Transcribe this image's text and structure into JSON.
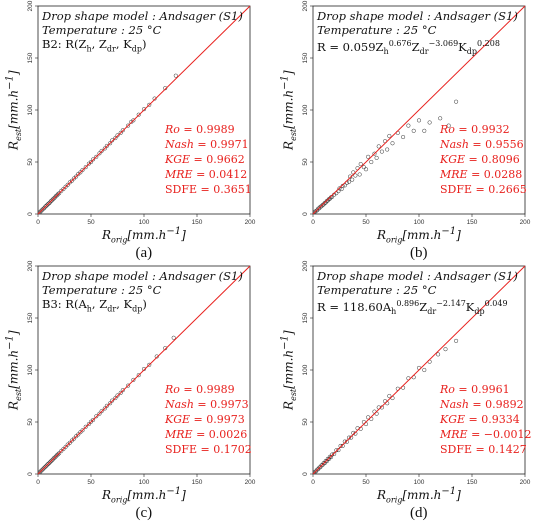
{
  "chart_data": [
    {
      "type": "scatter",
      "panel_label": "(a)",
      "model_text": "Drop shape model : Andsager (S1)",
      "temp_text": "Temperature : 25 °C",
      "formula": {
        "prefix": "B2",
        "rest": ": R(Z",
        "parts": [
          "h",
          ", Z",
          "dr",
          ", K",
          "dp",
          ")"
        ]
      },
      "xlabel": {
        "main": "R",
        "sub": "orig",
        "unit": "[mm.h",
        "sup": "−1",
        "end": "]"
      },
      "ylabel": {
        "main": "R",
        "sub": "est",
        "unit": "[mm.h",
        "sup": "−1",
        "end": "]"
      },
      "xlim": [
        0,
        200
      ],
      "ylim": [
        0,
        200
      ],
      "xticks": [
        "0",
        "50",
        "100",
        "150",
        "200"
      ],
      "yticks": [
        "0",
        "50",
        "100",
        "150",
        "200"
      ],
      "reference_line": "1:1",
      "stats": [
        {
          "k": "Ro",
          "v": "= 0.9989"
        },
        {
          "k": "Nash",
          "v": "= 0.9971"
        },
        {
          "k": "KGE",
          "v": "= 0.9662"
        },
        {
          "k": "MRE",
          "v": "= 0.0412"
        },
        {
          "k": "SDFE",
          "v": "= 0.3651"
        }
      ],
      "points": [
        [
          1,
          1
        ],
        [
          2,
          2
        ],
        [
          3,
          3
        ],
        [
          4,
          4
        ],
        [
          5,
          5
        ],
        [
          6,
          5.8
        ],
        [
          7,
          7.2
        ],
        [
          8,
          8
        ],
        [
          9,
          9.1
        ],
        [
          10,
          10
        ],
        [
          11,
          10.8
        ],
        [
          12,
          12.2
        ],
        [
          13,
          13
        ],
        [
          14,
          14.1
        ],
        [
          15,
          15
        ],
        [
          16,
          16
        ],
        [
          17,
          17.3
        ],
        [
          18,
          18
        ],
        [
          19,
          19.2
        ],
        [
          20,
          20
        ],
        [
          22,
          22.3
        ],
        [
          24,
          24
        ],
        [
          26,
          26.2
        ],
        [
          28,
          28
        ],
        [
          30,
          30.4
        ],
        [
          32,
          32
        ],
        [
          34,
          34.2
        ],
        [
          36,
          36
        ],
        [
          38,
          38.5
        ],
        [
          40,
          40
        ],
        [
          42,
          42.3
        ],
        [
          45,
          45
        ],
        [
          48,
          48.4
        ],
        [
          50,
          50
        ],
        [
          52,
          52.5
        ],
        [
          55,
          55
        ],
        [
          58,
          58.3
        ],
        [
          60,
          60.6
        ],
        [
          63,
          63
        ],
        [
          65,
          65.5
        ],
        [
          68,
          68
        ],
        [
          70,
          70.8
        ],
        [
          73,
          73
        ],
        [
          75,
          75.6
        ],
        [
          78,
          78
        ],
        [
          80,
          80.5
        ],
        [
          85,
          85
        ],
        [
          88,
          88.6
        ],
        [
          90,
          90
        ],
        [
          95,
          95.5
        ],
        [
          100,
          100.8
        ],
        [
          105,
          105
        ],
        [
          110,
          111
        ],
        [
          120,
          121
        ],
        [
          130,
          133
        ]
      ]
    },
    {
      "type": "scatter",
      "panel_label": "(b)",
      "model_text": "Drop shape model : Andsager (S1)",
      "temp_text": "Temperature : 25 °C",
      "formula_b": {
        "pre": "R = 0.059Z",
        "s1": "h",
        "p1": "0.676",
        "m1": "Z",
        "s2": "dr",
        "p2": "−3.069",
        "m2": "K",
        "s3": "dp",
        "p3": "0.208"
      },
      "xlabel": {
        "main": "R",
        "sub": "orig",
        "unit": "[mm.h",
        "sup": "−1",
        "end": "]"
      },
      "ylabel": {
        "main": "R",
        "sub": "est",
        "unit": "[mm.h",
        "sup": "−1",
        "end": "]"
      },
      "xlim": [
        0,
        200
      ],
      "ylim": [
        0,
        200
      ],
      "xticks": [
        "0",
        "50",
        "100",
        "150",
        "200"
      ],
      "yticks": [
        "0",
        "50",
        "100",
        "150",
        "200"
      ],
      "reference_line": "1:1",
      "stats": [
        {
          "k": "Ro",
          "v": "= 0.9932"
        },
        {
          "k": "Nash",
          "v": "= 0.9556"
        },
        {
          "k": "KGE",
          "v": "= 0.8096"
        },
        {
          "k": "MRE",
          "v": "= 0.0288"
        },
        {
          "k": "SDFE",
          "v": "= 0.2665"
        }
      ],
      "points": [
        [
          1,
          1
        ],
        [
          2,
          2.2
        ],
        [
          3,
          3
        ],
        [
          4,
          3.6
        ],
        [
          5,
          5.2
        ],
        [
          6,
          5.5
        ],
        [
          7,
          7
        ],
        [
          8,
          7.4
        ],
        [
          9,
          8.6
        ],
        [
          10,
          9.2
        ],
        [
          11,
          10.5
        ],
        [
          12,
          11
        ],
        [
          13,
          12.4
        ],
        [
          14,
          13
        ],
        [
          15,
          14.2
        ],
        [
          16,
          14.8
        ],
        [
          17,
          16
        ],
        [
          18,
          16.5
        ],
        [
          20,
          18.6
        ],
        [
          22,
          20
        ],
        [
          24,
          22
        ],
        [
          25,
          24.6
        ],
        [
          27,
          24
        ],
        [
          28,
          27
        ],
        [
          30,
          27.5
        ],
        [
          32,
          30
        ],
        [
          34,
          31
        ],
        [
          35,
          36
        ],
        [
          37,
          33
        ],
        [
          38,
          40
        ],
        [
          40,
          37
        ],
        [
          42,
          44
        ],
        [
          44,
          38
        ],
        [
          45,
          48
        ],
        [
          48,
          45
        ],
        [
          50,
          43
        ],
        [
          52,
          55
        ],
        [
          55,
          50
        ],
        [
          58,
          58
        ],
        [
          60,
          54
        ],
        [
          62,
          65
        ],
        [
          65,
          60
        ],
        [
          68,
          70
        ],
        [
          70,
          62
        ],
        [
          72,
          75
        ],
        [
          75,
          68
        ],
        [
          80,
          78
        ],
        [
          85,
          74
        ],
        [
          90,
          85
        ],
        [
          95,
          80
        ],
        [
          100,
          90
        ],
        [
          105,
          80
        ],
        [
          110,
          88
        ],
        [
          120,
          92
        ],
        [
          128,
          85
        ],
        [
          135,
          108
        ]
      ]
    },
    {
      "type": "scatter",
      "panel_label": "(c)",
      "model_text": "Drop shape model : Andsager (S1)",
      "temp_text": "Temperature : 25 °C",
      "formula": {
        "prefix": "B3",
        "rest": ": R(A",
        "parts": [
          "h",
          ", Z",
          "dr",
          ", K",
          "dp",
          ")"
        ]
      },
      "xlabel": {
        "main": "R",
        "sub": "orig",
        "unit": "[mm.h",
        "sup": "−1",
        "end": "]"
      },
      "ylabel": {
        "main": "R",
        "sub": "est",
        "unit": "[mm.h",
        "sup": "−1",
        "end": "]"
      },
      "xlim": [
        0,
        200
      ],
      "ylim": [
        0,
        200
      ],
      "xticks": [
        "0",
        "50",
        "100",
        "150",
        "200"
      ],
      "yticks": [
        "0",
        "50",
        "100",
        "150",
        "200"
      ],
      "reference_line": "1:1",
      "stats": [
        {
          "k": "Ro",
          "v": "= 0.9989"
        },
        {
          "k": "Nash",
          "v": "= 0.9973"
        },
        {
          "k": "KGE",
          "v": "= 0.9973"
        },
        {
          "k": "MRE",
          "v": "= 0.0026"
        },
        {
          "k": "SDFE",
          "v": "= 0.1702"
        }
      ],
      "points": [
        [
          1,
          1
        ],
        [
          2,
          2
        ],
        [
          3,
          3.1
        ],
        [
          4,
          4
        ],
        [
          5,
          5
        ],
        [
          6,
          6.1
        ],
        [
          7,
          7
        ],
        [
          8,
          8
        ],
        [
          9,
          9.2
        ],
        [
          10,
          10
        ],
        [
          11,
          11
        ],
        [
          12,
          12.1
        ],
        [
          13,
          13
        ],
        [
          14,
          14
        ],
        [
          15,
          15.2
        ],
        [
          16,
          16
        ],
        [
          17,
          17
        ],
        [
          18,
          18.2
        ],
        [
          19,
          19
        ],
        [
          20,
          20
        ],
        [
          22,
          22.2
        ],
        [
          24,
          24
        ],
        [
          26,
          26
        ],
        [
          28,
          28.3
        ],
        [
          30,
          30
        ],
        [
          32,
          32.2
        ],
        [
          34,
          34
        ],
        [
          36,
          36.3
        ],
        [
          38,
          38
        ],
        [
          40,
          40.2
        ],
        [
          42,
          42
        ],
        [
          45,
          45.4
        ],
        [
          48,
          48
        ],
        [
          50,
          50.3
        ],
        [
          52,
          52
        ],
        [
          55,
          55.5
        ],
        [
          58,
          58
        ],
        [
          60,
          60.4
        ],
        [
          63,
          63
        ],
        [
          65,
          65.6
        ],
        [
          68,
          68
        ],
        [
          70,
          70.6
        ],
        [
          73,
          73
        ],
        [
          75,
          75.5
        ],
        [
          78,
          78
        ],
        [
          80,
          80.6
        ],
        [
          85,
          85
        ],
        [
          90,
          90.5
        ],
        [
          95,
          95
        ],
        [
          100,
          101
        ],
        [
          105,
          105
        ],
        [
          112,
          113
        ],
        [
          120,
          121
        ],
        [
          128,
          131
        ]
      ]
    },
    {
      "type": "scatter",
      "panel_label": "(d)",
      "model_text": "Drop shape model : Andsager (S1)",
      "temp_text": "Temperature : 25 °C",
      "formula_b": {
        "pre": "R = 118.60A",
        "s1": "h",
        "p1": "0.896",
        "m1": "Z",
        "s2": "dr",
        "p2": "−2.147",
        "m2": "K",
        "s3": "dp",
        "p3": "0.049"
      },
      "xlabel": {
        "main": "R",
        "sub": "orig",
        "unit": "[mm.h",
        "sup": "−1",
        "end": "]"
      },
      "ylabel": {
        "main": "R",
        "sub": "est",
        "unit": "[mm.h",
        "sup": "−1",
        "end": "]"
      },
      "xlim": [
        0,
        200
      ],
      "ylim": [
        0,
        200
      ],
      "xticks": [
        "0",
        "50",
        "100",
        "150",
        "200"
      ],
      "yticks": [
        "0",
        "50",
        "100",
        "150",
        "200"
      ],
      "reference_line": "1:1",
      "stats": [
        {
          "k": "Ro",
          "v": "= 0.9961"
        },
        {
          "k": "Nash",
          "v": "= 0.9892"
        },
        {
          "k": "KGE",
          "v": "= 0.9334"
        },
        {
          "k": "MRE",
          "v": "= −0.0012"
        },
        {
          "k": "SDFE",
          "v": "= 0.1427"
        }
      ],
      "points": [
        [
          1,
          1
        ],
        [
          2,
          2.1
        ],
        [
          3,
          2.8
        ],
        [
          4,
          4.2
        ],
        [
          5,
          4.8
        ],
        [
          6,
          6.2
        ],
        [
          7,
          6.6
        ],
        [
          8,
          8.3
        ],
        [
          9,
          8.7
        ],
        [
          10,
          10.4
        ],
        [
          11,
          10.4
        ],
        [
          12,
          12.5
        ],
        [
          13,
          12.3
        ],
        [
          14,
          14.6
        ],
        [
          15,
          14.4
        ],
        [
          16,
          16.6
        ],
        [
          17,
          16.2
        ],
        [
          18,
          18.7
        ],
        [
          20,
          19.3
        ],
        [
          22,
          22.8
        ],
        [
          24,
          23
        ],
        [
          26,
          27
        ],
        [
          28,
          27
        ],
        [
          30,
          31.2
        ],
        [
          32,
          31
        ],
        [
          34,
          35
        ],
        [
          36,
          35
        ],
        [
          38,
          39.5
        ],
        [
          40,
          38.8
        ],
        [
          42,
          44
        ],
        [
          45,
          43.5
        ],
        [
          48,
          50
        ],
        [
          50,
          48
        ],
        [
          52,
          54.5
        ],
        [
          55,
          53
        ],
        [
          58,
          60
        ],
        [
          60,
          58
        ],
        [
          62,
          64
        ],
        [
          65,
          64
        ],
        [
          68,
          70
        ],
        [
          70,
          68
        ],
        [
          72,
          75
        ],
        [
          75,
          73
        ],
        [
          80,
          82
        ],
        [
          85,
          83
        ],
        [
          90,
          92
        ],
        [
          95,
          93
        ],
        [
          100,
          102
        ],
        [
          105,
          100
        ],
        [
          110,
          108
        ],
        [
          118,
          115
        ],
        [
          125,
          120
        ],
        [
          135,
          128
        ]
      ]
    }
  ]
}
